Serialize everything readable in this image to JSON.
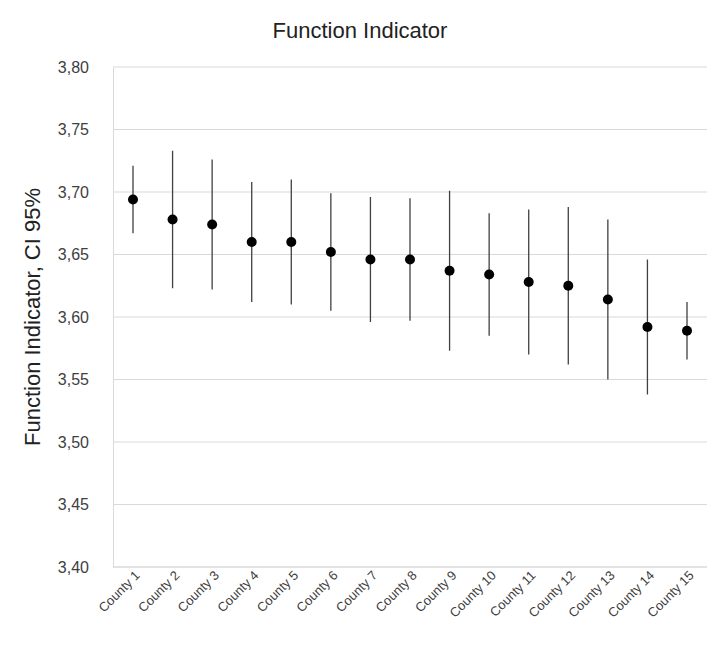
{
  "chart_data": {
    "type": "dot",
    "title": "Function Indicator",
    "y_label": "Function Indicator, CI 95%",
    "categories": [
      "County 1",
      "County 2",
      "County 3",
      "County 4",
      "County 5",
      "County 6",
      "County 7",
      "County 8",
      "County 9",
      "County 10",
      "County 11",
      "County 12",
      "County 13",
      "County 14",
      "County 15"
    ],
    "values": [
      3.694,
      3.678,
      3.674,
      3.66,
      3.66,
      3.652,
      3.646,
      3.646,
      3.637,
      3.634,
      3.628,
      3.625,
      3.614,
      3.592,
      3.589
    ],
    "errors": [
      0.027,
      0.055,
      0.052,
      0.048,
      0.05,
      0.047,
      0.05,
      0.049,
      0.064,
      0.049,
      0.058,
      0.063,
      0.064,
      0.054,
      0.023
    ],
    "color": "#000000",
    "marker": "circle",
    "ylim": [
      3.4,
      3.8
    ],
    "yticks": [
      {
        "value": 3.4,
        "label": "3,40"
      },
      {
        "value": 3.45,
        "label": "3,45"
      },
      {
        "value": 3.5,
        "label": "3,50"
      },
      {
        "value": 3.55,
        "label": "3,55"
      },
      {
        "value": 3.6,
        "label": "3,60"
      },
      {
        "value": 3.65,
        "label": "3,65"
      },
      {
        "value": 3.7,
        "label": "3,70"
      },
      {
        "value": 3.75,
        "label": "3,75"
      },
      {
        "value": 3.8,
        "label": "3,80"
      }
    ],
    "grid": true
  }
}
